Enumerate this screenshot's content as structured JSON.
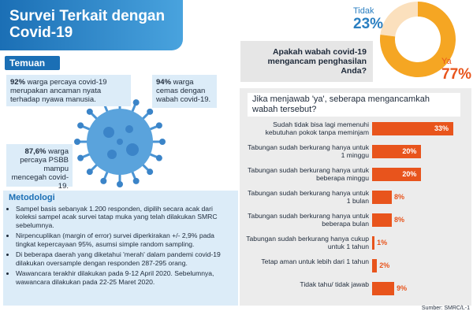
{
  "header": {
    "title": "Survei Terkait dengan Covid-19"
  },
  "findings": {
    "label": "Temuan",
    "items": [
      {
        "highlight": "92%",
        "text": "warga percaya covid-19 merupakan ancaman nyata terhadap nyawa manusia."
      },
      {
        "highlight": "94%",
        "text": "warga cemas dengan wabah covid-19."
      },
      {
        "highlight": "87,6%",
        "text": "warga percaya PSBB mampu mencegah covid-19."
      }
    ]
  },
  "methodology": {
    "title": "Metodologi",
    "items": [
      "Sampel basis sebanyak 1.200 responden, dipilih secara acak dari koleksi sampel acak survei tatap muka yang telah dilakukan SMRC sebelumnya.",
      "Nirpencuplikan (margin of error) survei diperkirakan +/- 2,9% pada tingkat kepercayaan 95%, asumsi simple random sampling.",
      "Di beberapa daerah yang diketahui 'merah' dalam pandemi covid-19 dilakukan oversample dengan responden 287-295 orang.",
      "Wawancara terakhir dilakukan pada 9-12 April 2020. Sebelumnya, wawancara dilakukan pada 22-25 Maret 2020."
    ]
  },
  "chart_data": [
    {
      "type": "pie",
      "title": "Apakah wabah covid-19 mengancam penghasilan Anda?",
      "categories": [
        "Tidak",
        "Ya"
      ],
      "values": [
        23,
        77
      ],
      "value_labels": [
        "23%",
        "77%"
      ],
      "colors": [
        "#fbe0bd",
        "#f5a623"
      ],
      "label_colors": [
        "#2a7fc1",
        "#e8541c"
      ]
    },
    {
      "type": "bar",
      "title": "Jika menjawab 'ya', seberapa mengancamkah wabah tersebut?",
      "categories": [
        "Sudah tidak bisa lagi memenuhi kebutuhan pokok tanpa meminjam",
        "Tabungan sudah berkurang hanya untuk 1 minggu",
        "Tabungan sudah berkurang hanya untuk beberapa minggu",
        "Tabungan sudah berkurang hanya untuk 1 bulan",
        "Tabungan sudah berkurang hanya untuk beberapa bulan",
        "Tabungan sudah berkurang hanya cukup untuk 1 tahun",
        "Tetap aman untuk lebih dari 1 tahun",
        "Tidak tahu/ tidak jawab"
      ],
      "values": [
        33,
        20,
        20,
        8,
        8,
        1,
        2,
        9
      ],
      "value_labels": [
        "33%",
        "20%",
        "20%",
        "8%",
        "8%",
        "1%",
        "2%",
        "9%"
      ],
      "color": "#e8541c"
    }
  ],
  "source": "Sumber: SMRC/L-1"
}
